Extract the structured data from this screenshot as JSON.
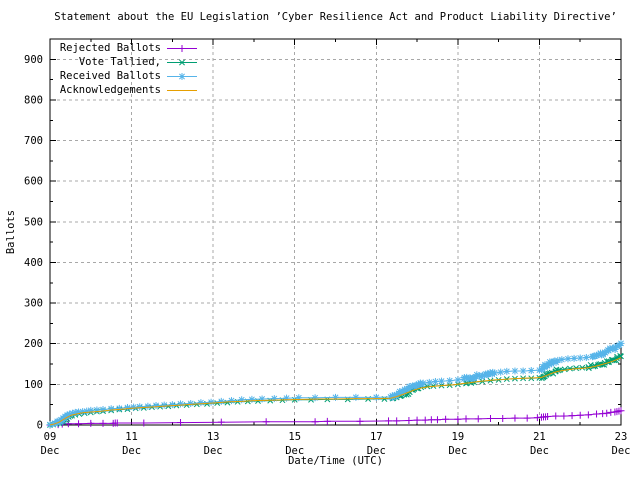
{
  "chart_data": {
    "type": "line",
    "title": "Statement about the EU Legislation ’Cyber Resilience Act and Product Liability Directive’",
    "xlabel": "Date/Time (UTC)",
    "ylabel": "Ballots",
    "ylim": [
      0,
      950
    ],
    "yticks": [
      0,
      100,
      200,
      300,
      400,
      500,
      600,
      700,
      800,
      900
    ],
    "yminor_step": 50,
    "xlim_days": [
      0,
      14
    ],
    "xticks": [
      {
        "day": 0,
        "top": "09",
        "bottom": "Dec"
      },
      {
        "day": 2,
        "top": "11",
        "bottom": "Dec"
      },
      {
        "day": 4,
        "top": "13",
        "bottom": "Dec"
      },
      {
        "day": 6,
        "top": "15",
        "bottom": "Dec"
      },
      {
        "day": 8,
        "top": "17",
        "bottom": "Dec"
      },
      {
        "day": 10,
        "top": "19",
        "bottom": "Dec"
      },
      {
        "day": 12,
        "top": "21",
        "bottom": "Dec"
      },
      {
        "day": 14,
        "top": "23",
        "bottom": "Dec"
      }
    ],
    "xminor_days": [
      1,
      3,
      5,
      7,
      9,
      11,
      13
    ],
    "grid": true,
    "grid_color": "#a8a8a8",
    "border_color": "#000000",
    "legend_position": "top-left",
    "series": [
      {
        "name": "Rejected Ballots",
        "color": "#9400d3",
        "marker": "plus",
        "points": [
          [
            0,
            0
          ],
          [
            0.2,
            1
          ],
          [
            0.3,
            2
          ],
          [
            0.45,
            3
          ],
          [
            0.7,
            3
          ],
          [
            1.0,
            4
          ],
          [
            1.3,
            4
          ],
          [
            1.55,
            4
          ],
          [
            1.6,
            5
          ],
          [
            1.65,
            5
          ],
          [
            2.3,
            5
          ],
          [
            3.2,
            6
          ],
          [
            4.2,
            7
          ],
          [
            5.3,
            8
          ],
          [
            6.5,
            8
          ],
          [
            6.8,
            9
          ],
          [
            7.6,
            9
          ],
          [
            8.3,
            10
          ],
          [
            8.5,
            10
          ],
          [
            8.8,
            11
          ],
          [
            9.0,
            12
          ],
          [
            9.2,
            12
          ],
          [
            9.35,
            13
          ],
          [
            9.5,
            13
          ],
          [
            9.7,
            14
          ],
          [
            10.0,
            14
          ],
          [
            10.2,
            15
          ],
          [
            10.5,
            15
          ],
          [
            10.8,
            16
          ],
          [
            11.1,
            16
          ],
          [
            11.4,
            17
          ],
          [
            11.7,
            17
          ],
          [
            11.95,
            18
          ],
          [
            12.05,
            19
          ],
          [
            12.1,
            20
          ],
          [
            12.15,
            20
          ],
          [
            12.2,
            21
          ],
          [
            12.4,
            22
          ],
          [
            12.6,
            22
          ],
          [
            12.8,
            23
          ],
          [
            13.0,
            24
          ],
          [
            13.2,
            25
          ],
          [
            13.4,
            27
          ],
          [
            13.55,
            28
          ],
          [
            13.65,
            29
          ],
          [
            13.75,
            31
          ],
          [
            13.85,
            32
          ],
          [
            13.9,
            33
          ],
          [
            13.95,
            34
          ],
          [
            14.0,
            35
          ]
        ]
      },
      {
        "name": "Vote Tallied,",
        "color": "#009e73",
        "marker": "cross",
        "points": [
          [
            0,
            0
          ],
          [
            0.08,
            1
          ],
          [
            0.15,
            3
          ],
          [
            0.22,
            6
          ],
          [
            0.28,
            9
          ],
          [
            0.34,
            13
          ],
          [
            0.4,
            17
          ],
          [
            0.46,
            20
          ],
          [
            0.54,
            23
          ],
          [
            0.62,
            25
          ],
          [
            0.72,
            27
          ],
          [
            0.85,
            29
          ],
          [
            1.0,
            31
          ],
          [
            1.15,
            33
          ],
          [
            1.3,
            34
          ],
          [
            1.5,
            36
          ],
          [
            1.7,
            38
          ],
          [
            1.9,
            39
          ],
          [
            2.1,
            41
          ],
          [
            2.3,
            42
          ],
          [
            2.5,
            44
          ],
          [
            2.7,
            45
          ],
          [
            2.9,
            46
          ],
          [
            3.1,
            48
          ],
          [
            3.35,
            49
          ],
          [
            3.6,
            51
          ],
          [
            3.85,
            52
          ],
          [
            4.1,
            54
          ],
          [
            4.35,
            55
          ],
          [
            4.6,
            57
          ],
          [
            4.85,
            58
          ],
          [
            5.1,
            59
          ],
          [
            5.4,
            60
          ],
          [
            5.7,
            61
          ],
          [
            6.0,
            62
          ],
          [
            6.4,
            62
          ],
          [
            6.8,
            63
          ],
          [
            7.3,
            63
          ],
          [
            7.8,
            64
          ],
          [
            8.2,
            64
          ],
          [
            8.4,
            65
          ],
          [
            8.5,
            68
          ],
          [
            8.6,
            72
          ],
          [
            8.7,
            77
          ],
          [
            8.8,
            82
          ],
          [
            8.9,
            86
          ],
          [
            9.0,
            90
          ],
          [
            9.1,
            93
          ],
          [
            9.25,
            95
          ],
          [
            9.4,
            96
          ],
          [
            9.6,
            97
          ],
          [
            9.8,
            98
          ],
          [
            10.0,
            100
          ],
          [
            10.2,
            102
          ],
          [
            10.4,
            105
          ],
          [
            10.6,
            107
          ],
          [
            10.8,
            109
          ],
          [
            11.0,
            111
          ],
          [
            11.2,
            113
          ],
          [
            11.4,
            114
          ],
          [
            11.6,
            115
          ],
          [
            11.8,
            115
          ],
          [
            12.0,
            116
          ],
          [
            12.1,
            119
          ],
          [
            12.16,
            123
          ],
          [
            12.22,
            126
          ],
          [
            12.3,
            129
          ],
          [
            12.4,
            132
          ],
          [
            12.5,
            135
          ],
          [
            12.62,
            137
          ],
          [
            12.75,
            139
          ],
          [
            12.9,
            140
          ],
          [
            13.05,
            141
          ],
          [
            13.2,
            143
          ],
          [
            13.35,
            146
          ],
          [
            13.5,
            150
          ],
          [
            13.6,
            153
          ],
          [
            13.7,
            157
          ],
          [
            13.8,
            160
          ],
          [
            13.9,
            164
          ],
          [
            14.0,
            169
          ]
        ]
      },
      {
        "name": "Received Ballots",
        "color": "#56b4e9",
        "marker": "asterisk",
        "points": [
          [
            0,
            1
          ],
          [
            0.06,
            2
          ],
          [
            0.12,
            4
          ],
          [
            0.18,
            6
          ],
          [
            0.22,
            9
          ],
          [
            0.27,
            13
          ],
          [
            0.32,
            17
          ],
          [
            0.37,
            21
          ],
          [
            0.42,
            24
          ],
          [
            0.48,
            27
          ],
          [
            0.55,
            29
          ],
          [
            0.62,
            31
          ],
          [
            0.7,
            32
          ],
          [
            0.8,
            33
          ],
          [
            0.9,
            34
          ],
          [
            1.0,
            36
          ],
          [
            1.15,
            37
          ],
          [
            1.3,
            38
          ],
          [
            1.5,
            40
          ],
          [
            1.7,
            41
          ],
          [
            1.9,
            43
          ],
          [
            2.05,
            44
          ],
          [
            2.2,
            45
          ],
          [
            2.4,
            46
          ],
          [
            2.6,
            48
          ],
          [
            2.8,
            49
          ],
          [
            3.0,
            50
          ],
          [
            3.2,
            52
          ],
          [
            3.45,
            53
          ],
          [
            3.7,
            55
          ],
          [
            3.95,
            56
          ],
          [
            4.2,
            58
          ],
          [
            4.45,
            60
          ],
          [
            4.7,
            62
          ],
          [
            4.95,
            63
          ],
          [
            5.2,
            64
          ],
          [
            5.5,
            65
          ],
          [
            5.8,
            66
          ],
          [
            6.1,
            67
          ],
          [
            6.5,
            67
          ],
          [
            7.0,
            68
          ],
          [
            7.5,
            68
          ],
          [
            8.0,
            68
          ],
          [
            8.35,
            69
          ],
          [
            8.45,
            73
          ],
          [
            8.55,
            78
          ],
          [
            8.65,
            83
          ],
          [
            8.75,
            88
          ],
          [
            8.85,
            93
          ],
          [
            8.95,
            97
          ],
          [
            9.05,
            100
          ],
          [
            9.15,
            103
          ],
          [
            9.3,
            105
          ],
          [
            9.45,
            107
          ],
          [
            9.6,
            108
          ],
          [
            9.8,
            109
          ],
          [
            10.0,
            111
          ],
          [
            10.15,
            113
          ],
          [
            10.3,
            116
          ],
          [
            10.45,
            119
          ],
          [
            10.6,
            122
          ],
          [
            10.75,
            125
          ],
          [
            10.9,
            128
          ],
          [
            11.05,
            130
          ],
          [
            11.2,
            132
          ],
          [
            11.4,
            133
          ],
          [
            11.6,
            133
          ],
          [
            11.8,
            134
          ],
          [
            12.0,
            135
          ],
          [
            12.08,
            138
          ],
          [
            12.13,
            142
          ],
          [
            12.18,
            146
          ],
          [
            12.23,
            150
          ],
          [
            12.28,
            153
          ],
          [
            12.35,
            156
          ],
          [
            12.45,
            159
          ],
          [
            12.55,
            161
          ],
          [
            12.7,
            163
          ],
          [
            12.85,
            164
          ],
          [
            13.0,
            165
          ],
          [
            13.15,
            166
          ],
          [
            13.3,
            168
          ],
          [
            13.4,
            171
          ],
          [
            13.5,
            175
          ],
          [
            13.6,
            179
          ],
          [
            13.7,
            183
          ],
          [
            13.8,
            188
          ],
          [
            13.9,
            194
          ],
          [
            14.0,
            201
          ]
        ]
      },
      {
        "name": "Acknowledgements",
        "color": "#e69f00",
        "marker": "none",
        "points": [
          [
            0,
            0
          ],
          [
            0.12,
            3
          ],
          [
            0.22,
            7
          ],
          [
            0.32,
            13
          ],
          [
            0.42,
            19
          ],
          [
            0.52,
            24
          ],
          [
            0.65,
            27
          ],
          [
            0.8,
            30
          ],
          [
            1.0,
            32
          ],
          [
            1.25,
            34
          ],
          [
            1.5,
            37
          ],
          [
            1.75,
            39
          ],
          [
            2.0,
            41
          ],
          [
            2.3,
            43
          ],
          [
            2.6,
            45
          ],
          [
            2.9,
            47
          ],
          [
            3.2,
            49
          ],
          [
            3.5,
            51
          ],
          [
            3.8,
            53
          ],
          [
            4.1,
            55
          ],
          [
            4.4,
            57
          ],
          [
            4.7,
            58
          ],
          [
            5.0,
            60
          ],
          [
            5.4,
            61
          ],
          [
            5.8,
            62
          ],
          [
            6.2,
            63
          ],
          [
            6.6,
            64
          ],
          [
            7.0,
            64
          ],
          [
            7.5,
            65
          ],
          [
            8.0,
            65
          ],
          [
            8.35,
            66
          ],
          [
            8.5,
            70
          ],
          [
            8.65,
            75
          ],
          [
            8.8,
            81
          ],
          [
            8.95,
            87
          ],
          [
            9.1,
            91
          ],
          [
            9.3,
            94
          ],
          [
            9.5,
            96
          ],
          [
            9.7,
            98
          ],
          [
            9.9,
            99
          ],
          [
            10.1,
            102
          ],
          [
            10.3,
            104
          ],
          [
            10.5,
            107
          ],
          [
            10.7,
            109
          ],
          [
            10.9,
            111
          ],
          [
            11.1,
            112
          ],
          [
            11.35,
            114
          ],
          [
            11.6,
            115
          ],
          [
            11.85,
            116
          ],
          [
            12.05,
            117
          ],
          [
            12.15,
            121
          ],
          [
            12.25,
            125
          ],
          [
            12.35,
            129
          ],
          [
            12.45,
            132
          ],
          [
            12.55,
            134
          ],
          [
            12.7,
            136
          ],
          [
            12.85,
            138
          ],
          [
            13.0,
            139
          ],
          [
            13.2,
            141
          ],
          [
            13.35,
            144
          ],
          [
            13.5,
            148
          ],
          [
            13.65,
            152
          ],
          [
            13.8,
            157
          ],
          [
            13.9,
            161
          ],
          [
            14.0,
            166
          ]
        ]
      }
    ]
  }
}
